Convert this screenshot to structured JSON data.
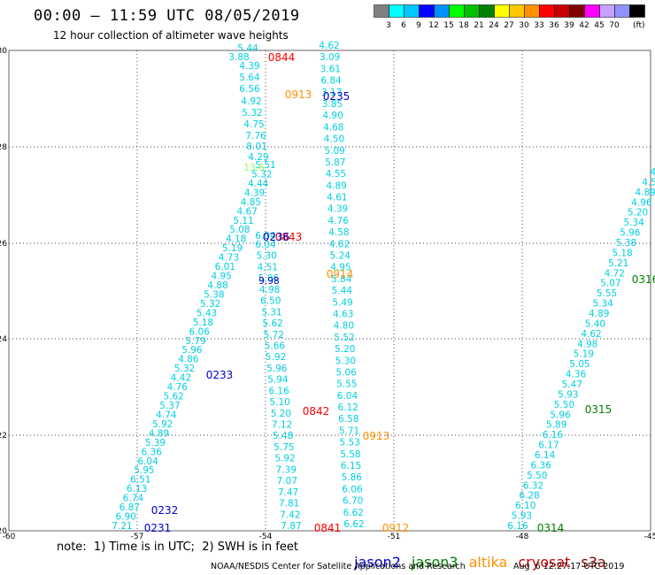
{
  "header": {
    "title": "00:00 – 11:59 UTC 08/05/2019",
    "subtitle": "12 hour collection of altimeter wave heights"
  },
  "colorbar": {
    "colors": [
      "#808080",
      "#00ffff",
      "#00c8ff",
      "#0000ff",
      "#0090ff",
      "#00ff00",
      "#00c000",
      "#008000",
      "#ffff00",
      "#ffc800",
      "#ff9000",
      "#ff0000",
      "#c80000",
      "#800000",
      "#ff00ff",
      "#c8a0ff",
      "#9090ff",
      "#000000"
    ],
    "labels": [
      "3",
      "6",
      "9",
      "12",
      "15",
      "18",
      "21",
      "24",
      "27",
      "30",
      "33",
      "36",
      "39",
      "42",
      "45",
      "70",
      "(ft)"
    ]
  },
  "axes": {
    "x_ticks": [
      "-60",
      "-57",
      "-54",
      "-51",
      "-48",
      "-45"
    ],
    "y_ticks": [
      "20",
      "22",
      "24",
      "26",
      "28",
      "30"
    ]
  },
  "passes": [
    {
      "id": "0844",
      "color": "#ff0000"
    },
    {
      "id": "0235",
      "color": "#0000c8"
    },
    {
      "id": "0913",
      "color": "#ff9000"
    },
    {
      "id": "0843",
      "color": "#ff0000"
    },
    {
      "id": "0236",
      "color": "#0000c8"
    },
    {
      "id": "0914",
      "color": "#ff9000"
    },
    {
      "id": "0233",
      "color": "#0000c8"
    },
    {
      "id": "0842",
      "color": "#ff0000"
    },
    {
      "id": "0913",
      "color": "#ff9000"
    },
    {
      "id": "0232",
      "color": "#0000c8"
    },
    {
      "id": "0231",
      "color": "#0000c8"
    },
    {
      "id": "0841",
      "color": "#ff0000"
    },
    {
      "id": "0912",
      "color": "#ff9000"
    },
    {
      "id": "0314",
      "color": "#008000"
    },
    {
      "id": "0315",
      "color": "#008000"
    },
    {
      "id": "0316",
      "color": "#008000"
    }
  ],
  "tracks": [
    {
      "name": "track-a",
      "color": "#00d0e0",
      "values": [
        "7.21",
        "6.90",
        "6.87",
        "6.74",
        "6.13",
        "6.51",
        "5.95",
        "6.04",
        "6.36",
        "5.39",
        "4.89",
        "5.92",
        "4.74",
        "5.37",
        "5.62",
        "4.76",
        "4.42",
        "5.32",
        "4.86",
        "5.96",
        "5.79",
        "6.06",
        "5.18",
        "5.43",
        "5.32",
        "5.38",
        "4.88",
        "4.95",
        "6.01",
        "4.73",
        "5.19",
        "4.18",
        "5.08",
        "5.11",
        "4.67",
        "4.85",
        "4.39",
        "4.44",
        "5.32",
        "5.51"
      ]
    },
    {
      "name": "track-b",
      "color": "#00d0e0",
      "values": [
        "7.87",
        "7.42",
        "7.81",
        "7.47",
        "7.07",
        "7.39",
        "5.92",
        "5.75",
        "5.48",
        "7.12",
        "5.20",
        "5.10",
        "6.16",
        "5.94",
        "5.96",
        "5.92",
        "5.66",
        "5.72",
        "5.62",
        "5.31",
        "6.50",
        "4.98",
        "5.06",
        "4.51",
        "5.30",
        "6.04"
      ]
    },
    {
      "name": "track-c",
      "color": "#00d0e0",
      "values": [
        "6.62",
        "6.62",
        "6.70",
        "6.06",
        "5.86",
        "6.15",
        "5.58",
        "5.53",
        "5.71",
        "6.58",
        "6.12",
        "6.04",
        "5.55",
        "5.06",
        "5.30",
        "5.20",
        "5.52",
        "4.80",
        "4.63",
        "5.49",
        "5.44",
        "5.84",
        "4.95",
        "5.24",
        "4.82",
        "4.58",
        "4.76",
        "4.39",
        "4.61",
        "4.89",
        "4.55",
        "5.87",
        "5.09",
        "4.50",
        "4.68",
        "4.90",
        "3.85",
        "3.17",
        "6.84",
        "3.61",
        "3.09",
        "4.62"
      ]
    },
    {
      "name": "track-d",
      "color": "#00d0e0",
      "values": [
        "6.16",
        "5.93",
        "6.10",
        "6.28",
        "6.32",
        "5.50",
        "6.36",
        "6.14",
        "6.17",
        "6.16",
        "5.89",
        "5.96",
        "5.50",
        "5.93",
        "5.47",
        "4.36",
        "5.05",
        "5.19",
        "4.98",
        "4.62",
        "5.40",
        "4.89",
        "5.34",
        "5.55",
        "5.07",
        "4.72",
        "5.21",
        "5.18",
        "5.38",
        "5.96",
        "5.34",
        "5.20",
        "4.96",
        "4.89",
        "4.5",
        "4"
      ]
    }
  ],
  "special_values": [
    {
      "text": "9.98",
      "color": "#0000c8"
    },
    {
      "text": "13.6",
      "color": "#90ff60"
    }
  ],
  "note": "note:  1) Time is in UTC;  2) SWH is in feet",
  "legend": [
    {
      "name": "jason2",
      "color": "#0000c8"
    },
    {
      "name": "jason3",
      "color": "#008000"
    },
    {
      "name": "altika",
      "color": "#ff9000"
    },
    {
      "name": "cryosat",
      "color": "#c80000"
    },
    {
      "name": "s3a",
      "color": "#800000"
    }
  ],
  "credit": "NOAA/NESDIS Center for Satellite Applications and Research",
  "timestamp": "Aug  6 12:27:17 UTC 2019"
}
